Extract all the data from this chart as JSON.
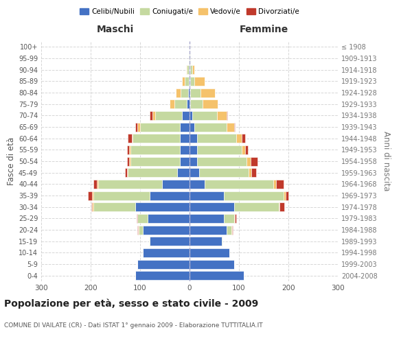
{
  "age_groups": [
    "0-4",
    "5-9",
    "10-14",
    "15-19",
    "20-24",
    "25-29",
    "30-34",
    "35-39",
    "40-44",
    "45-49",
    "50-54",
    "55-59",
    "60-64",
    "65-69",
    "70-74",
    "75-79",
    "80-84",
    "85-89",
    "90-94",
    "95-99",
    "100+"
  ],
  "birth_years": [
    "2004-2008",
    "1999-2003",
    "1994-1998",
    "1989-1993",
    "1984-1988",
    "1979-1983",
    "1974-1978",
    "1969-1973",
    "1964-1968",
    "1959-1963",
    "1954-1958",
    "1949-1953",
    "1944-1948",
    "1939-1943",
    "1934-1938",
    "1929-1933",
    "1924-1928",
    "1919-1923",
    "1914-1918",
    "1909-1913",
    "≤ 1908"
  ],
  "male": {
    "celibe": [
      110,
      105,
      95,
      80,
      95,
      85,
      110,
      80,
      55,
      25,
      20,
      20,
      20,
      20,
      15,
      5,
      3,
      2,
      2,
      0,
      0
    ],
    "coniugato": [
      0,
      0,
      0,
      2,
      8,
      20,
      85,
      115,
      130,
      100,
      100,
      100,
      95,
      80,
      55,
      25,
      15,
      8,
      3,
      1,
      0
    ],
    "vedovo": [
      0,
      0,
      0,
      0,
      1,
      1,
      2,
      2,
      2,
      2,
      2,
      2,
      2,
      5,
      5,
      10,
      10,
      5,
      2,
      1,
      0
    ],
    "divorziato": [
      0,
      0,
      0,
      0,
      1,
      1,
      2,
      8,
      8,
      3,
      5,
      5,
      8,
      5,
      5,
      0,
      0,
      0,
      0,
      0,
      0
    ]
  },
  "female": {
    "nubile": [
      110,
      90,
      80,
      65,
      75,
      70,
      90,
      70,
      30,
      20,
      15,
      15,
      15,
      10,
      5,
      2,
      2,
      2,
      2,
      0,
      0
    ],
    "coniugata": [
      0,
      0,
      0,
      2,
      10,
      20,
      90,
      120,
      140,
      100,
      100,
      90,
      80,
      65,
      50,
      25,
      20,
      8,
      3,
      1,
      0
    ],
    "vedova": [
      0,
      0,
      0,
      0,
      1,
      2,
      2,
      5,
      5,
      5,
      8,
      8,
      10,
      15,
      20,
      30,
      30,
      20,
      5,
      1,
      0
    ],
    "divorziata": [
      0,
      0,
      0,
      0,
      1,
      2,
      10,
      5,
      15,
      10,
      15,
      5,
      8,
      2,
      2,
      0,
      0,
      0,
      0,
      0,
      0
    ]
  },
  "colors": {
    "celibe": "#4472c4",
    "coniugato": "#c5d9a0",
    "vedovo": "#f5c26b",
    "divorziato": "#c0392b"
  },
  "title": "Popolazione per età, sesso e stato civile - 2009",
  "subtitle": "COMUNE DI VAILATE (CR) - Dati ISTAT 1° gennaio 2009 - Elaborazione TUTTITALIA.IT",
  "xlabel_left": "Maschi",
  "xlabel_right": "Femmine",
  "ylabel_left": "Fasce di età",
  "ylabel_right": "Anni di nascita",
  "xlim": 300,
  "legend_labels": [
    "Celibi/Nubili",
    "Coniugati/e",
    "Vedovi/e",
    "Divorziati/e"
  ],
  "bg_color": "#ffffff",
  "grid_color": "#cccccc"
}
